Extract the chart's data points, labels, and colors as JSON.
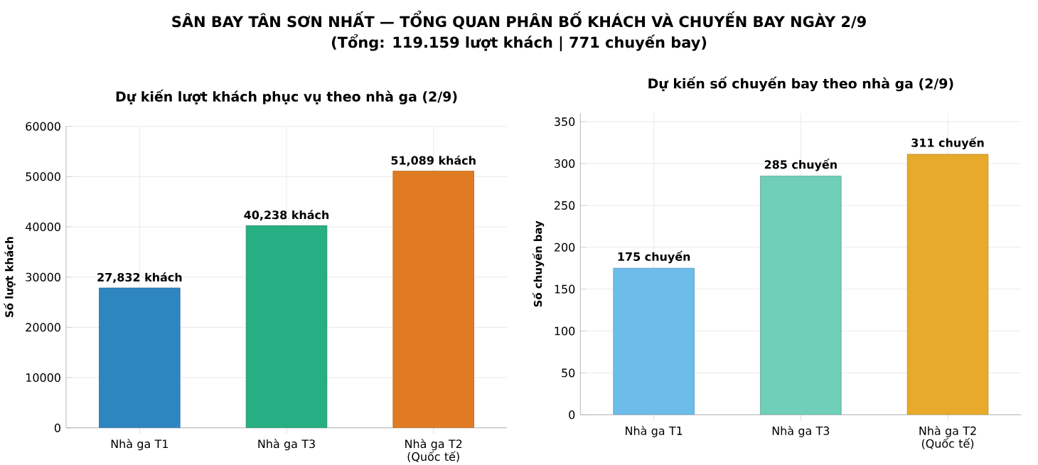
{
  "chart_data": [
    {
      "type": "bar",
      "title": "Dự kiến lượt khách phục vụ theo nhà ga (2/9)",
      "ylabel": "Số lượt khách",
      "annotations": [
        "SÂN BAY TÂN SƠN NHẤT — TỔNG QUAN PHÂN BỐ KHÁCH VÀ CHUYẾN BAY NGÀY 2/9",
        "(Tổng: 119.159 lượt khách | 771 chuyến bay)"
      ],
      "categories": [
        "Nhà ga T1",
        "Nhà ga T3",
        "Nhà ga T2 (Quốc tế)"
      ],
      "values": [
        27832,
        40238,
        51089
      ],
      "value_labels": [
        "27,832 khách",
        "40,238 khách",
        "51,089 khách"
      ],
      "colors": [
        "#2e86c1",
        "#27ae82",
        "#e07b24"
      ],
      "ylim": [
        0,
        60000
      ],
      "yticks": [
        0,
        10000,
        20000,
        30000,
        40000,
        50000,
        60000
      ],
      "grid": true
    },
    {
      "type": "bar",
      "title": "Dự kiến số chuyến bay theo nhà ga (2/9)",
      "ylabel": "Số chuyến bay",
      "categories": [
        "Nhà ga T1",
        "Nhà ga T3",
        "Nhà ga T2 (Quốc tế)"
      ],
      "values": [
        175,
        285,
        311
      ],
      "value_labels": [
        "175 chuyến",
        "285 chuyến",
        "311 chuyến"
      ],
      "colors": [
        "#6cbdea",
        "#6fcfb9",
        "#e8aa2a"
      ],
      "ylim": [
        0,
        360
      ],
      "yticks": [
        0,
        50,
        100,
        150,
        200,
        250,
        300,
        350
      ],
      "grid": true
    }
  ]
}
